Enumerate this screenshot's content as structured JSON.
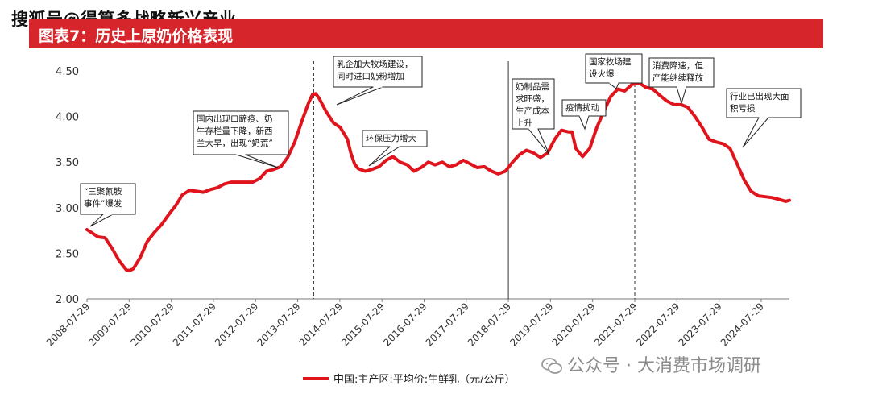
{
  "watermark_top": "搜狐号@得算多战略新兴产业",
  "watermark_bottom": "公众号 · 大消费市场调研",
  "title": "图表7：历史上原奶价格表现",
  "chart_data": {
    "type": "line",
    "title": "图表7：历史上原奶价格表现",
    "ylim": [
      2.0,
      4.5
    ],
    "yticks": [
      "4.50",
      "4.00",
      "3.50",
      "3.00",
      "2.50",
      "2.00"
    ],
    "ytick_values": [
      4.5,
      4.0,
      3.5,
      3.0,
      2.5,
      2.0
    ],
    "xticks": [
      "2008-07-29",
      "2009-07-29",
      "2010-07-29",
      "2011-07-29",
      "2012-07-29",
      "2013-07-29",
      "2014-07-29",
      "2015-07-29",
      "2016-07-29",
      "2017-07-29",
      "2018-07-29",
      "2019-07-29",
      "2020-07-29",
      "2021-07-29",
      "2022-07-29",
      "2023-07-29",
      "2024-07-29"
    ],
    "xlim": [
      2008.57,
      2025.24
    ],
    "legend": {
      "label": "中国:主产区:平均价:生鲜乳（元/公斤）",
      "placement": "bottom",
      "color": "#e0141c"
    },
    "vlines": [
      2013.95,
      2018.57,
      2021.57
    ],
    "series": [
      {
        "color": "#e0141c",
        "x": [
          2008.57,
          2008.67,
          2008.83,
          2009.0,
          2009.17,
          2009.33,
          2009.5,
          2009.58,
          2009.67,
          2009.83,
          2010.0,
          2010.17,
          2010.33,
          2010.5,
          2010.67,
          2010.83,
          2011.0,
          2011.17,
          2011.33,
          2011.5,
          2011.67,
          2011.83,
          2012.0,
          2012.17,
          2012.33,
          2012.5,
          2012.67,
          2012.83,
          2013.0,
          2013.17,
          2013.33,
          2013.5,
          2013.67,
          2013.83,
          2013.92,
          2014.0,
          2014.08,
          2014.25,
          2014.42,
          2014.58,
          2014.75,
          2014.83,
          2014.92,
          2015.0,
          2015.17,
          2015.33,
          2015.5,
          2015.67,
          2015.83,
          2016.0,
          2016.17,
          2016.33,
          2016.5,
          2016.67,
          2016.83,
          2017.0,
          2017.17,
          2017.33,
          2017.5,
          2017.67,
          2017.83,
          2018.0,
          2018.17,
          2018.33,
          2018.5,
          2018.67,
          2018.83,
          2019.0,
          2019.17,
          2019.33,
          2019.5,
          2019.67,
          2019.83,
          2020.0,
          2020.08,
          2020.17,
          2020.33,
          2020.5,
          2020.67,
          2020.83,
          2021.0,
          2021.17,
          2021.33,
          2021.5,
          2021.67,
          2021.83,
          2022.0,
          2022.17,
          2022.33,
          2022.5,
          2022.67,
          2022.83,
          2023.0,
          2023.17,
          2023.33,
          2023.5,
          2023.67,
          2023.83,
          2024.0,
          2024.17,
          2024.33,
          2024.5,
          2024.67,
          2024.83,
          2025.0,
          2025.15,
          2025.24
        ],
        "values": [
          2.76,
          2.73,
          2.68,
          2.67,
          2.55,
          2.42,
          2.32,
          2.31,
          2.33,
          2.45,
          2.63,
          2.73,
          2.81,
          2.92,
          3.02,
          3.14,
          3.19,
          3.18,
          3.17,
          3.2,
          3.22,
          3.26,
          3.28,
          3.28,
          3.28,
          3.28,
          3.32,
          3.4,
          3.42,
          3.45,
          3.55,
          3.72,
          3.95,
          4.15,
          4.24,
          4.25,
          4.2,
          4.05,
          3.93,
          3.88,
          3.75,
          3.6,
          3.48,
          3.43,
          3.4,
          3.42,
          3.45,
          3.52,
          3.56,
          3.5,
          3.47,
          3.4,
          3.44,
          3.5,
          3.47,
          3.5,
          3.45,
          3.47,
          3.52,
          3.48,
          3.44,
          3.45,
          3.4,
          3.37,
          3.4,
          3.5,
          3.58,
          3.63,
          3.6,
          3.55,
          3.6,
          3.75,
          3.85,
          3.83,
          3.83,
          3.65,
          3.56,
          3.65,
          3.88,
          4.05,
          4.22,
          4.3,
          4.28,
          4.35,
          4.37,
          4.32,
          4.3,
          4.23,
          4.17,
          4.13,
          4.13,
          4.1,
          4.0,
          3.88,
          3.75,
          3.72,
          3.7,
          3.65,
          3.48,
          3.3,
          3.18,
          3.13,
          3.12,
          3.11,
          3.09,
          3.07,
          3.08
        ]
      }
    ],
    "annotations": [
      {
        "lines": [
          "“三聚氰胺",
          "事件”爆发"
        ],
        "x": 2008.66,
        "y": 2.78
      },
      {
        "lines": [
          "国内出现口蹄疫、奶",
          "牛存栏量下降，新西",
          "兰大旱，出现“奶荒”"
        ],
        "x": 2012.62,
        "y": 3.38
      },
      {
        "lines": [
          "乳企加大牧场建设，",
          "同时进口奶粉增加"
        ],
        "x": 2014.02,
        "y": 4.22
      },
      {
        "lines": [
          "环保压力增大"
        ],
        "x": 2014.9,
        "y": 3.44
      },
      {
        "lines": [
          "奶制品需",
          "求旺盛，",
          "生产成本",
          "上升"
        ],
        "x": 2019.27,
        "y": 3.58
      },
      {
        "lines": [
          "疫情扰动"
        ],
        "x": 2020.05,
        "y": 3.62
      },
      {
        "lines": [
          "国家牧场建",
          "设火爆"
        ],
        "x": 2021.65,
        "y": 4.42
      },
      {
        "lines": [
          "消费降速，但",
          "产能继续释放"
        ],
        "x": 2022.25,
        "y": 4.1
      },
      {
        "lines": [
          "行业已出现大面",
          "积亏损"
        ],
        "x": 2024.0,
        "y": 3.62
      }
    ]
  }
}
